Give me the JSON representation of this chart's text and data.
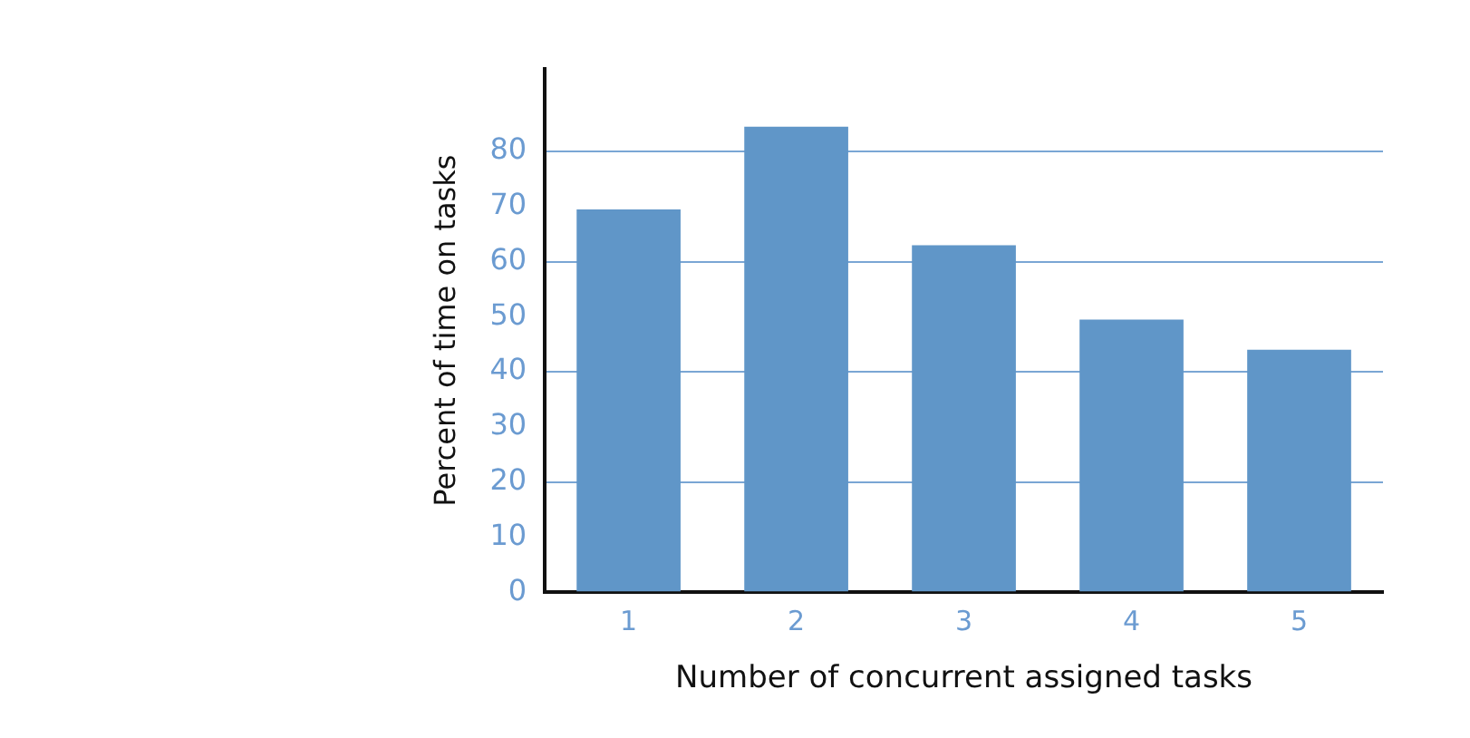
{
  "chart_data": {
    "type": "bar",
    "xlabel": "Number of concurrent assigned tasks",
    "ylabel": "Percent of time on tasks",
    "categories": [
      "1",
      "2",
      "3",
      "4",
      "5"
    ],
    "values": [
      69.5,
      84.5,
      63,
      49.5,
      44
    ],
    "color": "#6096c8",
    "ylim": [
      0,
      95
    ],
    "yticks": [
      0,
      10,
      20,
      30,
      40,
      50,
      60,
      70,
      80
    ],
    "grid": "y"
  }
}
